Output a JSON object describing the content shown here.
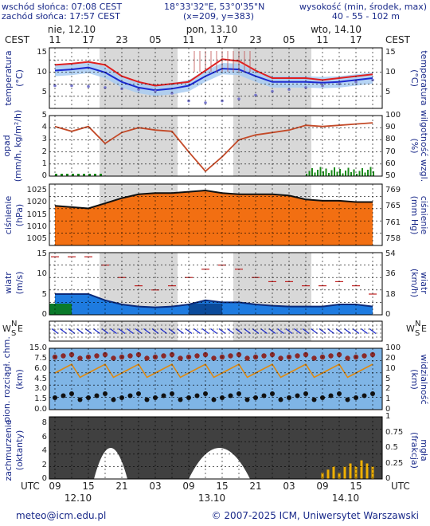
{
  "header": {
    "sunrise": "wschód słońca: 07:08 CEST",
    "sunset": "zachód słońca: 17:57 CEST",
    "coords": "18°33'32\"E, 53°0'35\"N",
    "grid": "(x=209, y=383)",
    "elevation_label": "wysokość (min, środek, max)",
    "elevation_values": "40 - 55 - 102 m"
  },
  "top_axis": {
    "tz_left": "CEST",
    "tz_right": "CEST",
    "days": [
      "nie, 12.10",
      "pon, 13.10",
      "wto, 14.10"
    ],
    "hours": [
      "11",
      "17",
      "23",
      "05",
      "11",
      "17",
      "23",
      "05",
      "11",
      "17"
    ]
  },
  "bottom_axis": {
    "tz_left": "UTC",
    "tz_right": "UTC",
    "hours": [
      "09",
      "15",
      "21",
      "03",
      "09",
      "15",
      "21",
      "03",
      "09",
      "15"
    ],
    "dates": [
      "12.10",
      "13.10",
      "14.10"
    ]
  },
  "panels": {
    "temperature": {
      "label_left": "temperatura",
      "unit_left": "(°C)",
      "label_right": "temperatura",
      "unit_right": "(°C)",
      "ticks": [
        "15",
        "10",
        "5"
      ]
    },
    "precipitation": {
      "label_left": "opad",
      "unit_left": "(mm/h, kg/m²/h)",
      "label_right": "wilgotność wzgl.",
      "unit_right": "(%)",
      "ticks_left": [
        "5",
        "4",
        "3",
        "2",
        "1",
        "0"
      ],
      "ticks_right": [
        "100",
        "90",
        "80",
        "70",
        "60",
        "50"
      ]
    },
    "pressure": {
      "label_left": "ciśnienie",
      "unit_left": "(hPa)",
      "label_right": "ciśnienie",
      "unit_right": "(mm Hg)",
      "ticks_left": [
        "1025",
        "1020",
        "1015",
        "1010",
        "1005"
      ],
      "ticks_right": [
        "769",
        "765",
        "761",
        "758"
      ]
    },
    "wind": {
      "label_left": "wiatr",
      "unit_left": "(m/s)",
      "label_right": "wiatr",
      "unit_right": "(km/h)",
      "ticks_left": [
        "15",
        "10",
        "5",
        "0"
      ],
      "ticks_right": [
        "54",
        "36",
        "18",
        "0"
      ]
    },
    "direction": {
      "compass_left": [
        "N",
        "W",
        "E",
        "S"
      ],
      "compass_right": [
        "N",
        "W",
        "E",
        "S"
      ]
    },
    "visibility": {
      "label_left": "pion. rozciągł. chm.",
      "unit_left": "(km)",
      "label_right": "widzialność",
      "unit_right": "(km)",
      "ticks_left": [
        "15.0",
        "7.5",
        "6.0",
        "4.5",
        "3.0",
        "1.5",
        "0.0"
      ],
      "ticks_right": [
        "100",
        "20",
        "10",
        "5",
        "2",
        "1",
        "0"
      ]
    },
    "clouds": {
      "label_left": "zachmurzenie",
      "unit_left": "(oktanty)",
      "label_right": "mgła",
      "unit_right": "(frakcja)",
      "ticks_left": [
        "8",
        "6",
        "4",
        "2",
        "0"
      ],
      "ticks_right": [
        "1",
        "0.75",
        "0.5",
        "0.25",
        "0"
      ]
    }
  },
  "chart_data": [
    {
      "type": "line",
      "name": "temperature",
      "x_hours": [
        9,
        12,
        15,
        18,
        21,
        24,
        27,
        30,
        33,
        36,
        39,
        42,
        45,
        48,
        51,
        54,
        57,
        60,
        63,
        66
      ],
      "series": [
        {
          "values": [
            11.5,
            11.8,
            12.3,
            11.5,
            8.5,
            7,
            6,
            6.5,
            7,
            10,
            13,
            12.5,
            10,
            8,
            8,
            8,
            7.5,
            8,
            8.5,
            9
          ]
        },
        {
          "values": [
            10,
            10.3,
            10.8,
            9.5,
            7,
            5.5,
            4.8,
            5.2,
            6,
            8.5,
            10.5,
            10.3,
            8.5,
            7,
            7,
            7,
            6.8,
            7,
            7.5,
            8
          ]
        },
        {
          "values": [
            6,
            6,
            5.8,
            5.5,
            5.2,
            5,
            4.5,
            4,
            2,
            1.5,
            2,
            2.5,
            3.5,
            4.5,
            5,
            5.5,
            6,
            6.5,
            7,
            7.5
          ]
        }
      ],
      "ylim": [
        0,
        16
      ]
    },
    {
      "type": "line",
      "name": "humidity",
      "x_hours": [
        9,
        12,
        15,
        18,
        21,
        24,
        27,
        30,
        33,
        36,
        39,
        42,
        45,
        48,
        51,
        54,
        57,
        60,
        63,
        66
      ],
      "values": [
        91,
        87,
        91,
        77,
        86,
        90,
        88,
        87,
        70,
        54,
        66,
        80,
        84,
        86,
        88,
        92,
        91,
        92,
        93,
        94
      ],
      "ylim": [
        50,
        100
      ]
    },
    {
      "type": "line",
      "name": "pressure",
      "x_hours": [
        9,
        12,
        15,
        18,
        21,
        24,
        27,
        30,
        33,
        36,
        39,
        42,
        45,
        48,
        51,
        54,
        57,
        60,
        63,
        66
      ],
      "values": [
        1020.5,
        1020,
        1019.5,
        1021.5,
        1023.5,
        1025,
        1025.5,
        1025.5,
        1026,
        1026.5,
        1025.5,
        1025,
        1025,
        1025,
        1024.5,
        1023,
        1022.5,
        1022.5,
        1022,
        1022
      ],
      "ylim": [
        1005,
        1029
      ]
    },
    {
      "type": "line",
      "name": "wind",
      "x_hours": [
        9,
        12,
        15,
        18,
        21,
        24,
        27,
        30,
        33,
        36,
        39,
        42,
        45,
        48,
        51,
        54,
        57,
        60,
        63,
        66
      ],
      "series": [
        {
          "values": [
            5,
            5,
            5,
            3.5,
            2.5,
            2,
            1.8,
            2,
            2.5,
            3.5,
            3,
            3,
            2.5,
            2.2,
            2,
            2,
            2,
            2.5,
            2.5,
            2
          ]
        },
        {
          "values": [
            14,
            14,
            14,
            12,
            9,
            7,
            6,
            7,
            9,
            11,
            12,
            11,
            9,
            8,
            8,
            7,
            7,
            8,
            7,
            5
          ]
        }
      ],
      "ylim": [
        0,
        15
      ]
    },
    {
      "type": "bar",
      "name": "fog",
      "x_hours": [
        57,
        58,
        59,
        60,
        61,
        62,
        63,
        64,
        65,
        66
      ],
      "values": [
        0.1,
        0.15,
        0.2,
        0.1,
        0.2,
        0.25,
        0.2,
        0.3,
        0.25,
        0.2
      ],
      "ylim": [
        0,
        1
      ]
    }
  ],
  "footer": {
    "email": "meteo@icm.edu.pl",
    "copyright": "© 2007-2025 ICM, Uniwersytet Warszawski"
  },
  "colors": {
    "temp_max": "#e02020",
    "temp_avg": "#1c2bd0",
    "humidity": "#c44a28",
    "pressure_fill": "#f26f12",
    "night_band": "#d8d8d8",
    "cloud_fill": "#404040",
    "sky": "#7fb5e6",
    "fog_bar": "#f0b000",
    "text": "#1a2a8a"
  }
}
